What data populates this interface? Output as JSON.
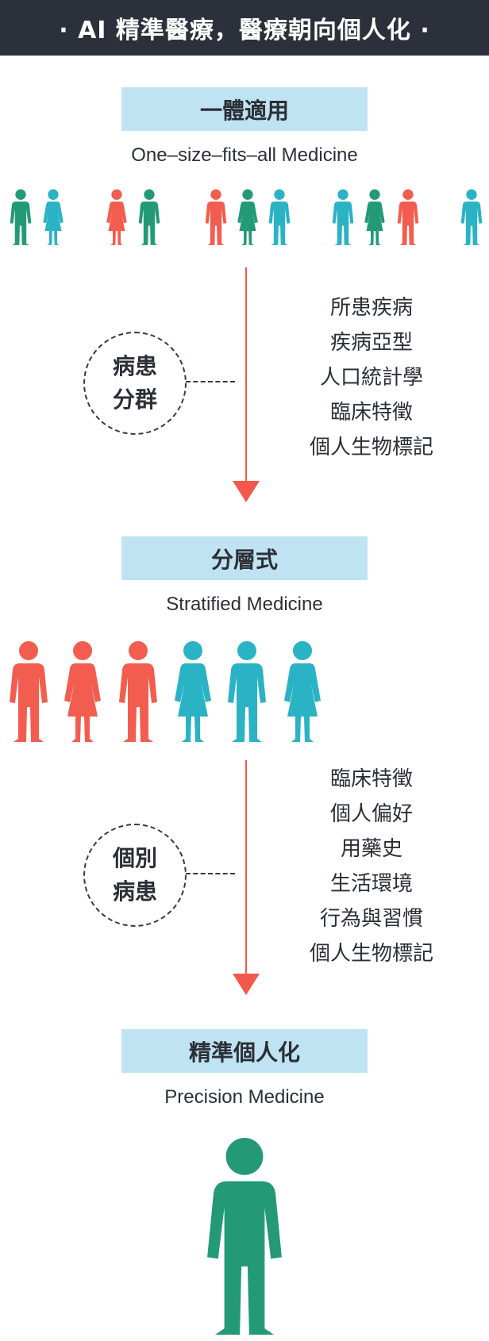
{
  "header": {
    "title": "· AI 精準醫療，醫療朝向個人化 ·"
  },
  "stages": [
    {
      "title": "一體適用",
      "subtitle": "One–size–fits–all Medicine"
    },
    {
      "title": "分層式",
      "subtitle": "Stratified Medicine"
    },
    {
      "title": "精準個人化",
      "subtitle": "Precision Medicine"
    }
  ],
  "transitions": [
    {
      "circle_line1": "病患",
      "circle_line2": "分群",
      "factors": [
        "所患疾病",
        "疾病亞型",
        "人口統計學",
        "臨床特徵",
        "個人生物標記"
      ]
    },
    {
      "circle_line1": "個別",
      "circle_line2": "病患",
      "factors": [
        "臨床特徵",
        "個人偏好",
        "用藥史",
        "生活環境",
        "行為與習慣",
        "個人生物標記"
      ]
    }
  ],
  "colors": {
    "green": "#239a75",
    "red": "#f35d4f",
    "teal": "#2ab3c4",
    "arrow": "#f2584c",
    "header_bg": "#2b303a",
    "label_bg": "#bfe3f2"
  },
  "groups": {
    "row1": [
      {
        "color": "green",
        "kind": "male"
      },
      {
        "color": "teal",
        "kind": "female"
      },
      {
        "color": "red",
        "kind": "female"
      },
      {
        "color": "green",
        "kind": "male"
      },
      {
        "color": "red",
        "kind": "male"
      },
      {
        "color": "green",
        "kind": "female"
      },
      {
        "color": "teal",
        "kind": "male"
      },
      {
        "color": "teal",
        "kind": "male"
      },
      {
        "color": "green",
        "kind": "female"
      },
      {
        "color": "red",
        "kind": "male"
      },
      {
        "color": "teal",
        "kind": "male"
      }
    ],
    "row2": [
      {
        "color": "red",
        "kind": "male"
      },
      {
        "color": "red",
        "kind": "female"
      },
      {
        "color": "red",
        "kind": "male"
      },
      {
        "color": "teal",
        "kind": "female"
      },
      {
        "color": "teal",
        "kind": "male"
      },
      {
        "color": "teal",
        "kind": "female"
      }
    ],
    "row3": [
      {
        "color": "green",
        "kind": "male"
      }
    ]
  }
}
